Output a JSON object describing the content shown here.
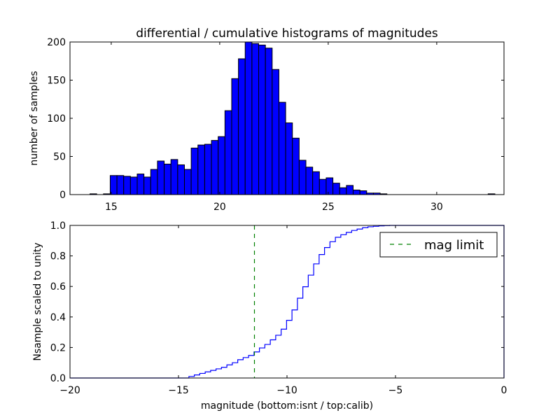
{
  "chart_data": [
    {
      "type": "bar",
      "title": "differential / cumulative histograms of magnitudes",
      "xlabel": "",
      "ylabel": "number of samples",
      "xlim": [
        13.1,
        33.1
      ],
      "ylim": [
        0,
        200
      ],
      "xticks": [
        "15",
        "20",
        "25",
        "30"
      ],
      "xtick_values": [
        15,
        20,
        25,
        30
      ],
      "yticks": [
        "0",
        "50",
        "100",
        "150",
        "200"
      ],
      "ytick_values": [
        0,
        50,
        100,
        150,
        200
      ],
      "bin_start": 14.02,
      "bin_width": 0.311,
      "counts": [
        1,
        0,
        1,
        25,
        25,
        24,
        23,
        27,
        23,
        33,
        44,
        40,
        46,
        39,
        33,
        61,
        65,
        66,
        71,
        76,
        110,
        152,
        178,
        200,
        198,
        196,
        192,
        164,
        121,
        94,
        74,
        45,
        36,
        30,
        20,
        22,
        15,
        9,
        12,
        6,
        5,
        2,
        2,
        1,
        0,
        0,
        0,
        0,
        0,
        0,
        0,
        0,
        0,
        0,
        0,
        0,
        0,
        0,
        0,
        1
      ],
      "bar_color": "#0000ff"
    },
    {
      "type": "line",
      "title": "",
      "xlabel": "magnitude (bottom:isnt / top:calib)",
      "ylabel": "Nsample scaled to unity",
      "xlim": [
        -20,
        0
      ],
      "ylim": [
        0,
        1
      ],
      "xticks": [
        "−20",
        "−15",
        "−10",
        "−5",
        "0"
      ],
      "xtick_values": [
        -20,
        -15,
        -10,
        -5,
        0
      ],
      "yticks": [
        "0.0",
        "0.2",
        "0.4",
        "0.6",
        "0.8",
        "1.0"
      ],
      "ytick_values": [
        0,
        0.2,
        0.4,
        0.6,
        0.8,
        1.0
      ],
      "step_start": -14.52,
      "step_width": 0.25,
      "cumulative": [
        0.01,
        0.02,
        0.03,
        0.04,
        0.05,
        0.06,
        0.07,
        0.086,
        0.1,
        0.12,
        0.134,
        0.148,
        0.171,
        0.197,
        0.22,
        0.25,
        0.28,
        0.32,
        0.378,
        0.446,
        0.523,
        0.598,
        0.674,
        0.748,
        0.809,
        0.855,
        0.893,
        0.922,
        0.939,
        0.954,
        0.967,
        0.976,
        0.985,
        0.991,
        0.994,
        0.997,
        0.999,
        1.0
      ],
      "line_color": "#0000ff",
      "mag_limit": -11.5,
      "mag_limit_color": "#008000",
      "legend": {
        "label": "mag limit",
        "placement": "top-right"
      }
    }
  ]
}
